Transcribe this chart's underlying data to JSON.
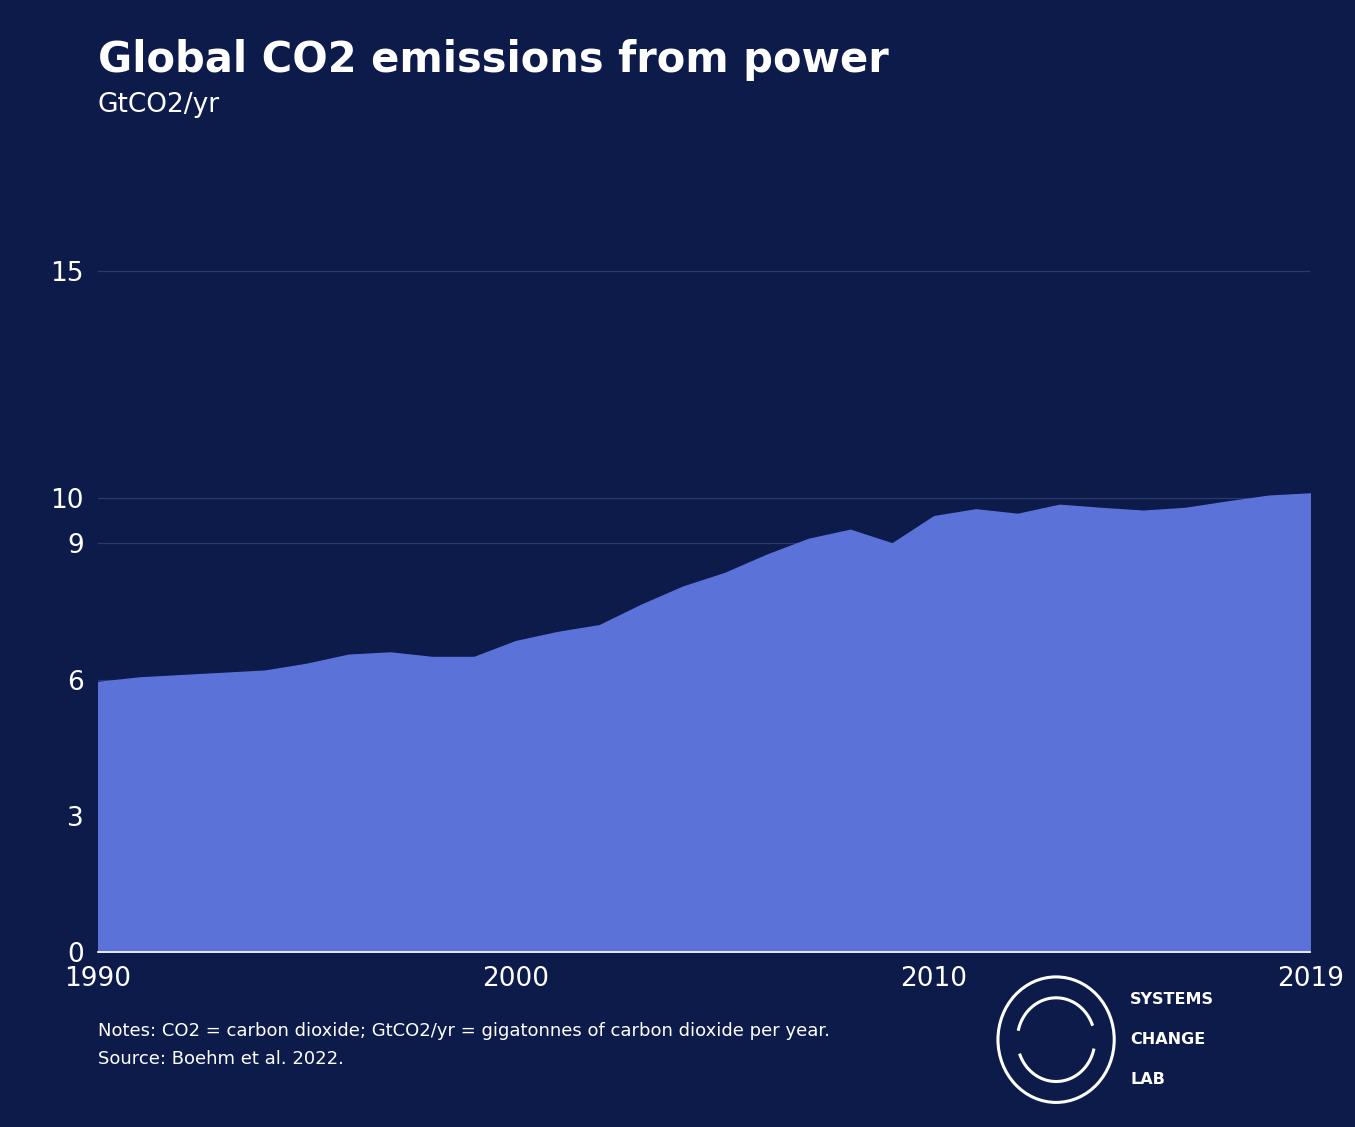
{
  "title": "Global CO2 emissions from power",
  "subtitle": "GtCO2/yr",
  "background_color": "#0d1b4b",
  "fill_color": "#5b72d9",
  "text_color": "#ffffff",
  "grid_color": "#2a3a6a",
  "title_fontsize": 30,
  "subtitle_fontsize": 19,
  "tick_fontsize": 19,
  "notes_fontsize": 13,
  "years": [
    1990,
    1991,
    1992,
    1993,
    1994,
    1995,
    1996,
    1997,
    1998,
    1999,
    2000,
    2001,
    2002,
    2003,
    2004,
    2005,
    2006,
    2007,
    2008,
    2009,
    2010,
    2011,
    2012,
    2013,
    2014,
    2015,
    2016,
    2017,
    2018,
    2019
  ],
  "values": [
    5.95,
    6.05,
    6.1,
    6.15,
    6.2,
    6.35,
    6.55,
    6.6,
    6.5,
    6.5,
    6.85,
    7.05,
    7.2,
    7.65,
    8.05,
    8.35,
    8.75,
    9.1,
    9.3,
    9.0,
    9.6,
    9.75,
    9.65,
    9.85,
    9.78,
    9.72,
    9.78,
    9.92,
    10.05,
    10.1
  ],
  "ylim": [
    0,
    16
  ],
  "yticks": [
    0,
    3,
    6,
    9,
    10,
    15
  ],
  "xlim": [
    1990,
    2019
  ],
  "xticks": [
    1990,
    2000,
    2010,
    2019
  ],
  "notes_line1": "Notes: CO2 = carbon dioxide; GtCO2/yr = gigatonnes of carbon dioxide per year.",
  "notes_line2": "Source: Boehm et al. 2022."
}
